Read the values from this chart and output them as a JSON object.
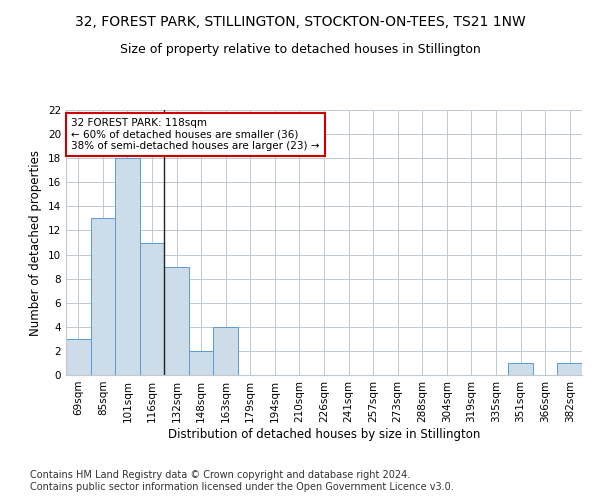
{
  "title": "32, FOREST PARK, STILLINGTON, STOCKTON-ON-TEES, TS21 1NW",
  "subtitle": "Size of property relative to detached houses in Stillington",
  "xlabel": "Distribution of detached houses by size in Stillington",
  "ylabel": "Number of detached properties",
  "footer1": "Contains HM Land Registry data © Crown copyright and database right 2024.",
  "footer2": "Contains public sector information licensed under the Open Government Licence v3.0.",
  "categories": [
    "69sqm",
    "85sqm",
    "101sqm",
    "116sqm",
    "132sqm",
    "148sqm",
    "163sqm",
    "179sqm",
    "194sqm",
    "210sqm",
    "226sqm",
    "241sqm",
    "257sqm",
    "273sqm",
    "288sqm",
    "304sqm",
    "319sqm",
    "335sqm",
    "351sqm",
    "366sqm",
    "382sqm"
  ],
  "values": [
    3,
    13,
    18,
    11,
    9,
    2,
    4,
    0,
    0,
    0,
    0,
    0,
    0,
    0,
    0,
    0,
    0,
    0,
    1,
    0,
    1
  ],
  "bar_color": "#ccdce8",
  "bar_edge_color": "#5b9bd5",
  "property_bar_index": 3,
  "property_line_color": "#222222",
  "annotation_text": "32 FOREST PARK: 118sqm\n← 60% of detached houses are smaller (36)\n38% of semi-detached houses are larger (23) →",
  "annotation_box_color": "#ffffff",
  "annotation_box_edge": "#cc0000",
  "ylim": [
    0,
    22
  ],
  "yticks": [
    0,
    2,
    4,
    6,
    8,
    10,
    12,
    14,
    16,
    18,
    20,
    22
  ],
  "bg_color": "#ffffff",
  "grid_color": "#c0c8d0",
  "title_fontsize": 10,
  "subtitle_fontsize": 9,
  "axis_label_fontsize": 8.5,
  "tick_fontsize": 7.5,
  "footer_fontsize": 7
}
